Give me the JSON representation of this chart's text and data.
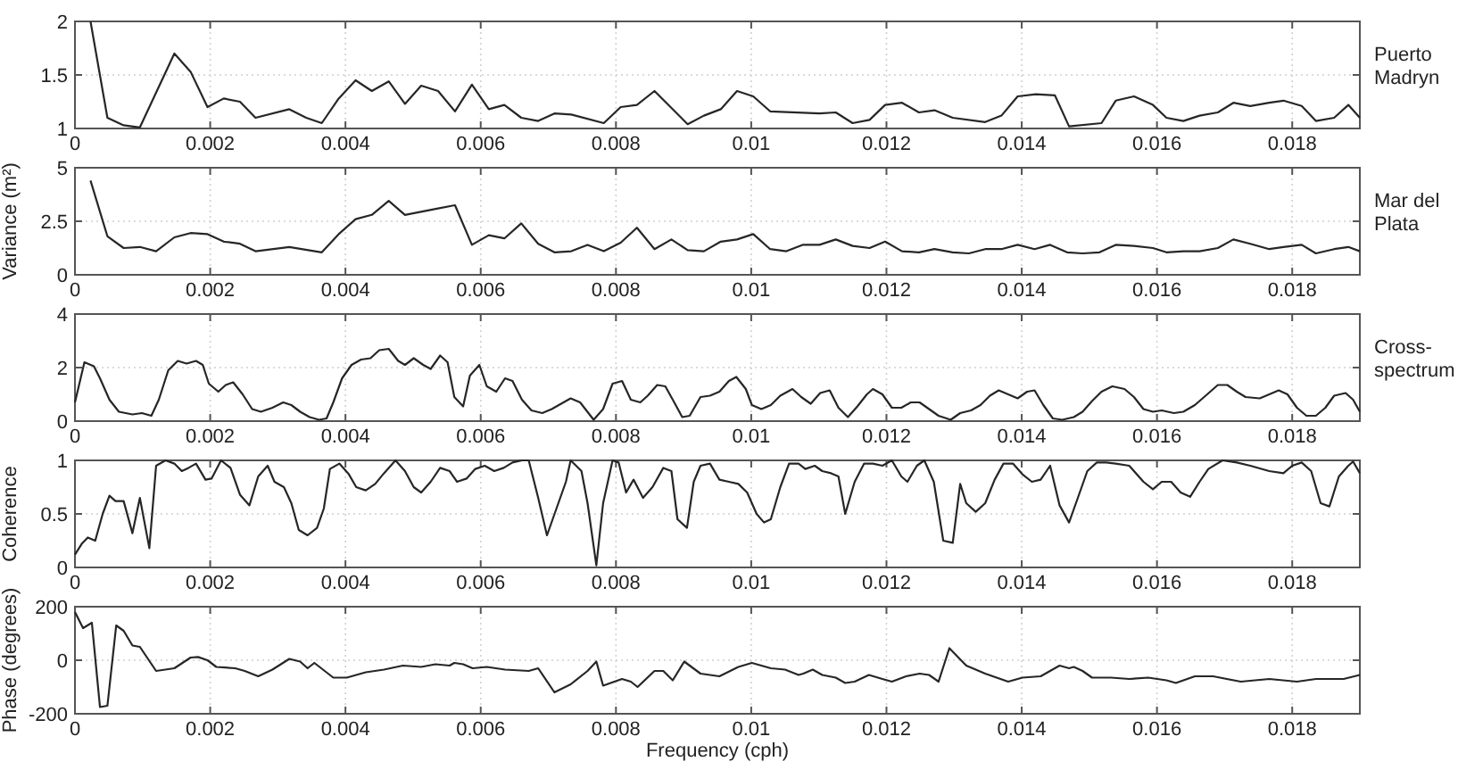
{
  "chart_data": [
    {
      "type": "line",
      "xlim": [
        0,
        0.019
      ],
      "xticks": [
        0,
        0.002,
        0.004,
        0.006,
        0.008,
        0.01,
        0.012,
        0.014,
        0.016,
        0.018
      ],
      "ylim": [
        1,
        2
      ],
      "yticks": [
        1,
        1.5,
        2
      ],
      "grid": true,
      "series": [
        {
          "name": "Puerto Madryn",
          "color": "#262626",
          "x": [
            0.00023,
            0.00048,
            0.00072,
            0.00096,
            0.00147,
            0.00171,
            0.00196,
            0.0022,
            0.00244,
            0.00267,
            0.00317,
            0.00342,
            0.00365,
            0.0039,
            0.00415,
            0.00439,
            0.00464,
            0.00488,
            0.00512,
            0.00537,
            0.00562,
            0.00587,
            0.00612,
            0.00635,
            0.0066,
            0.00685,
            0.00709,
            0.00734,
            0.00782,
            0.00807,
            0.00831,
            0.00857,
            0.00906,
            0.0093,
            0.00955,
            0.00979,
            0.01003,
            0.01028,
            0.01101,
            0.01125,
            0.0115,
            0.01175,
            0.01198,
            0.01223,
            0.01248,
            0.01271,
            0.01298,
            0.01346,
            0.0137,
            0.01394,
            0.01421,
            0.01449,
            0.0147,
            0.01518,
            0.01539,
            0.01566,
            0.01594,
            0.01614,
            0.01639,
            0.01663,
            0.0169,
            0.01713,
            0.01738,
            0.01766,
            0.01787,
            0.01814,
            0.01835,
            0.01862,
            0.01883,
            0.019
          ],
          "values": [
            2.0,
            1.1,
            1.03,
            1.01,
            1.7,
            1.53,
            1.2,
            1.28,
            1.25,
            1.1,
            1.18,
            1.1,
            1.05,
            1.28,
            1.45,
            1.35,
            1.44,
            1.23,
            1.4,
            1.35,
            1.16,
            1.41,
            1.18,
            1.22,
            1.1,
            1.07,
            1.14,
            1.13,
            1.05,
            1.2,
            1.22,
            1.35,
            1.04,
            1.12,
            1.18,
            1.35,
            1.3,
            1.16,
            1.14,
            1.15,
            1.05,
            1.08,
            1.22,
            1.24,
            1.15,
            1.17,
            1.1,
            1.06,
            1.12,
            1.3,
            1.32,
            1.31,
            1.02,
            1.05,
            1.26,
            1.3,
            1.22,
            1.1,
            1.07,
            1.12,
            1.15,
            1.24,
            1.21,
            1.24,
            1.26,
            1.21,
            1.07,
            1.1,
            1.22,
            1.1
          ]
        }
      ]
    },
    {
      "type": "line",
      "xlim": [
        0,
        0.019
      ],
      "xticks": [
        0,
        0.002,
        0.004,
        0.006,
        0.008,
        0.01,
        0.012,
        0.014,
        0.016,
        0.018
      ],
      "ylim": [
        0,
        5
      ],
      "yticks": [
        0,
        2.5,
        5
      ],
      "ylabel": "Variance (m²)",
      "grid": true,
      "series": [
        {
          "name": "Mar del Plata",
          "color": "#262626",
          "x": [
            0.00023,
            0.00048,
            0.00072,
            0.00096,
            0.0012,
            0.00147,
            0.00171,
            0.00196,
            0.0022,
            0.00244,
            0.00267,
            0.00317,
            0.00365,
            0.0039,
            0.00415,
            0.00439,
            0.00464,
            0.00488,
            0.00537,
            0.00562,
            0.00587,
            0.00612,
            0.00635,
            0.0066,
            0.00685,
            0.00709,
            0.00734,
            0.00758,
            0.00782,
            0.00807,
            0.00831,
            0.00857,
            0.00882,
            0.00906,
            0.0093,
            0.00955,
            0.00979,
            0.01003,
            0.01028,
            0.01052,
            0.01076,
            0.01101,
            0.01125,
            0.0115,
            0.01175,
            0.01198,
            0.01223,
            0.01248,
            0.01271,
            0.01298,
            0.01322,
            0.01346,
            0.0137,
            0.01394,
            0.01419,
            0.01442,
            0.01467,
            0.0149,
            0.01515,
            0.01539,
            0.01566,
            0.01594,
            0.01614,
            0.01639,
            0.01663,
            0.0169,
            0.01713,
            0.01738,
            0.01766,
            0.01787,
            0.01814,
            0.01835,
            0.01862,
            0.01883,
            0.019
          ],
          "values": [
            4.4,
            1.8,
            1.25,
            1.3,
            1.1,
            1.75,
            1.95,
            1.9,
            1.55,
            1.45,
            1.1,
            1.3,
            1.05,
            1.9,
            2.6,
            2.8,
            3.45,
            2.8,
            3.1,
            3.25,
            1.4,
            1.85,
            1.7,
            2.4,
            1.45,
            1.05,
            1.1,
            1.4,
            1.1,
            1.5,
            2.2,
            1.2,
            1.65,
            1.15,
            1.1,
            1.55,
            1.65,
            1.9,
            1.2,
            1.1,
            1.4,
            1.4,
            1.65,
            1.35,
            1.25,
            1.55,
            1.1,
            1.05,
            1.2,
            1.05,
            1.0,
            1.2,
            1.2,
            1.4,
            1.2,
            1.4,
            1.05,
            1.0,
            1.05,
            1.4,
            1.35,
            1.25,
            1.05,
            1.1,
            1.1,
            1.25,
            1.65,
            1.45,
            1.2,
            1.3,
            1.4,
            1.0,
            1.2,
            1.3,
            1.1
          ]
        }
      ]
    },
    {
      "type": "line",
      "xlim": [
        0,
        0.019
      ],
      "xticks": [
        0,
        0.002,
        0.004,
        0.006,
        0.008,
        0.01,
        0.012,
        0.014,
        0.016,
        0.018
      ],
      "ylim": [
        0,
        4
      ],
      "yticks": [
        0,
        2,
        4
      ],
      "grid": true,
      "series": [
        {
          "name": "Cross-spectrum",
          "color": "#262626",
          "x": [
            0,
            0.00014,
            0.00028,
            0.00037,
            0.00051,
            0.00065,
            0.00085,
            0.00099,
            0.00113,
            0.00124,
            0.00138,
            0.00152,
            0.00165,
            0.00179,
            0.00189,
            0.00198,
            0.00212,
            0.00223,
            0.00234,
            0.00248,
            0.00262,
            0.00275,
            0.00292,
            0.00308,
            0.0032,
            0.00333,
            0.00347,
            0.00361,
            0.00372,
            0.00382,
            0.00395,
            0.00409,
            0.00423,
            0.00437,
            0.0045,
            0.00464,
            0.00478,
            0.00488,
            0.00501,
            0.00515,
            0.00526,
            0.0054,
            0.00551,
            0.00561,
            0.00574,
            0.00584,
            0.00598,
            0.00609,
            0.00623,
            0.00636,
            0.00647,
            0.00661,
            0.00675,
            0.00691,
            0.00705,
            0.00719,
            0.00733,
            0.00747,
            0.00767,
            0.00781,
            0.00795,
            0.00809,
            0.00822,
            0.00836,
            0.00847,
            0.00861,
            0.00873,
            0.00884,
            0.00898,
            0.00909,
            0.00925,
            0.00939,
            0.00953,
            0.00967,
            0.00978,
            0.00992,
            0.01001,
            0.01015,
            0.01029,
            0.01043,
            0.01061,
            0.01074,
            0.01088,
            0.01102,
            0.01116,
            0.01129,
            0.01143,
            0.01157,
            0.01171,
            0.0118,
            0.01194,
            0.01208,
            0.01222,
            0.01236,
            0.01249,
            0.01263,
            0.01277,
            0.01295,
            0.01309,
            0.01325,
            0.01339,
            0.01353,
            0.01366,
            0.0138,
            0.01394,
            0.01408,
            0.01419,
            0.01432,
            0.01446,
            0.0146,
            0.01477,
            0.0149,
            0.01504,
            0.01518,
            0.01534,
            0.01552,
            0.01566,
            0.0158,
            0.01594,
            0.01607,
            0.01625,
            0.01639,
            0.01656,
            0.01672,
            0.0169,
            0.01704,
            0.01718,
            0.01731,
            0.01752,
            0.01766,
            0.0178,
            0.01793,
            0.01807,
            0.01821,
            0.01835,
            0.01849,
            0.01862,
            0.01879,
            0.0189,
            0.019
          ],
          "values": [
            0.7,
            2.2,
            2.05,
            1.6,
            0.8,
            0.35,
            0.25,
            0.3,
            0.2,
            0.8,
            1.9,
            2.25,
            2.15,
            2.25,
            2.1,
            1.4,
            1.1,
            1.35,
            1.45,
            1.0,
            0.45,
            0.35,
            0.5,
            0.7,
            0.6,
            0.35,
            0.15,
            0.05,
            0.1,
            0.7,
            1.6,
            2.1,
            2.3,
            2.35,
            2.65,
            2.7,
            2.25,
            2.1,
            2.35,
            2.1,
            1.95,
            2.45,
            2.2,
            0.9,
            0.55,
            1.7,
            2.1,
            1.3,
            1.1,
            1.6,
            1.5,
            0.8,
            0.4,
            0.3,
            0.45,
            0.65,
            0.85,
            0.7,
            0.05,
            0.45,
            1.4,
            1.5,
            0.8,
            0.7,
            0.95,
            1.35,
            1.3,
            0.8,
            0.15,
            0.2,
            0.9,
            0.95,
            1.1,
            1.5,
            1.65,
            1.2,
            0.6,
            0.45,
            0.6,
            0.95,
            1.2,
            0.9,
            0.65,
            1.05,
            1.15,
            0.5,
            0.15,
            0.55,
            1.0,
            1.2,
            1.0,
            0.5,
            0.5,
            0.7,
            0.7,
            0.45,
            0.2,
            0.05,
            0.3,
            0.4,
            0.6,
            0.95,
            1.15,
            1.0,
            0.85,
            1.1,
            1.15,
            0.6,
            0.1,
            0.05,
            0.15,
            0.35,
            0.75,
            1.1,
            1.3,
            1.2,
            0.9,
            0.45,
            0.35,
            0.4,
            0.3,
            0.35,
            0.6,
            0.95,
            1.35,
            1.35,
            1.1,
            0.9,
            0.85,
            1.0,
            1.15,
            1.0,
            0.5,
            0.2,
            0.2,
            0.5,
            0.95,
            1.05,
            0.8,
            0.35
          ]
        }
      ]
    },
    {
      "type": "line",
      "xlim": [
        0,
        0.019
      ],
      "xticks": [
        0,
        0.002,
        0.004,
        0.006,
        0.008,
        0.01,
        0.012,
        0.014,
        0.016,
        0.018
      ],
      "ylim": [
        0,
        1
      ],
      "yticks": [
        0,
        0.5,
        1
      ],
      "ylabel": "Coherence",
      "grid": true,
      "series": [
        {
          "color": "#262626",
          "x": [
            0,
            0.0001,
            0.00019,
            0.0003,
            0.00041,
            0.00051,
            0.0006,
            0.00072,
            0.00085,
            0.00096,
            0.0011,
            0.0012,
            0.00134,
            0.00147,
            0.00158,
            0.00168,
            0.00179,
            0.00193,
            0.00202,
            0.00216,
            0.0023,
            0.00244,
            0.00258,
            0.00271,
            0.00285,
            0.00295,
            0.00309,
            0.0032,
            0.00331,
            0.00344,
            0.00358,
            0.00368,
            0.00377,
            0.00391,
            0.00405,
            0.00416,
            0.0043,
            0.00444,
            0.00457,
            0.00474,
            0.00488,
            0.00501,
            0.00512,
            0.00526,
            0.0054,
            0.00554,
            0.00565,
            0.00579,
            0.00592,
            0.00606,
            0.0062,
            0.00634,
            0.00647,
            0.00661,
            0.00671,
            0.00685,
            0.00698,
            0.00712,
            0.00726,
            0.00733,
            0.00749,
            0.00758,
            0.00771,
            0.00781,
            0.00795,
            0.00804,
            0.00815,
            0.00826,
            0.0084,
            0.00854,
            0.0087,
            0.00882,
            0.00891,
            0.00905,
            0.00915,
            0.00925,
            0.00939,
            0.00953,
            0.00967,
            0.00981,
            0.00994,
            0.01008,
            0.01019,
            0.01029,
            0.01043,
            0.01056,
            0.0107,
            0.0108,
            0.01094,
            0.01105,
            0.01118,
            0.01129,
            0.01139,
            0.01153,
            0.01167,
            0.0118,
            0.01194,
            0.01208,
            0.01222,
            0.01231,
            0.01245,
            0.01256,
            0.0127,
            0.01284,
            0.01298,
            0.01309,
            0.01318,
            0.01332,
            0.01346,
            0.0136,
            0.01373,
            0.01387,
            0.01401,
            0.01415,
            0.01428,
            0.01442,
            0.01456,
            0.0147,
            0.01483,
            0.01497,
            0.01511,
            0.01525,
            0.01539,
            0.01559,
            0.0158,
            0.01594,
            0.01607,
            0.01621,
            0.01635,
            0.01649,
            0.01663,
            0.01676,
            0.01697,
            0.01718,
            0.01738,
            0.01766,
            0.01787,
            0.018,
            0.01814,
            0.01828,
            0.01842,
            0.01855,
            0.01869,
            0.01883,
            0.0189,
            0.019
          ],
          "values": [
            0.12,
            0.22,
            0.28,
            0.25,
            0.5,
            0.67,
            0.62,
            0.62,
            0.32,
            0.65,
            0.18,
            0.95,
            1.0,
            0.97,
            0.9,
            0.93,
            0.97,
            0.82,
            0.83,
            1.0,
            0.93,
            0.68,
            0.58,
            0.85,
            0.95,
            0.8,
            0.75,
            0.6,
            0.35,
            0.3,
            0.37,
            0.55,
            0.92,
            0.97,
            0.87,
            0.75,
            0.72,
            0.78,
            0.88,
            1.0,
            0.9,
            0.75,
            0.7,
            0.8,
            0.93,
            0.9,
            0.8,
            0.83,
            0.92,
            0.95,
            0.9,
            0.93,
            0.98,
            1.0,
            1.0,
            0.65,
            0.3,
            0.55,
            0.8,
            1.0,
            0.9,
            0.6,
            0.02,
            0.6,
            1.0,
            0.98,
            0.7,
            0.82,
            0.65,
            0.75,
            0.93,
            0.9,
            0.45,
            0.37,
            0.8,
            0.95,
            0.97,
            0.82,
            0.8,
            0.78,
            0.7,
            0.5,
            0.42,
            0.45,
            0.75,
            0.97,
            0.97,
            0.92,
            0.95,
            0.9,
            0.88,
            0.85,
            0.5,
            0.8,
            0.97,
            0.97,
            0.95,
            1.0,
            0.85,
            0.8,
            0.95,
            1.0,
            0.8,
            0.25,
            0.23,
            0.78,
            0.6,
            0.52,
            0.6,
            0.82,
            0.97,
            0.97,
            0.87,
            0.8,
            0.82,
            0.95,
            0.58,
            0.42,
            0.65,
            0.9,
            0.98,
            0.98,
            0.97,
            0.95,
            0.8,
            0.73,
            0.8,
            0.8,
            0.7,
            0.66,
            0.8,
            0.92,
            1.0,
            0.98,
            0.95,
            0.9,
            0.88,
            0.95,
            0.98,
            0.9,
            0.6,
            0.57,
            0.85,
            0.95,
            0.99,
            0.88
          ]
        }
      ]
    },
    {
      "type": "line",
      "xlim": [
        0,
        0.019
      ],
      "xticks": [
        0,
        0.002,
        0.004,
        0.006,
        0.008,
        0.01,
        0.012,
        0.014,
        0.016,
        0.018
      ],
      "ylim": [
        -200,
        200
      ],
      "yticks": [
        -200,
        0,
        200
      ],
      "ylabel": "Phase (degrees)",
      "xlabel": "Frequency (cph)",
      "grid": true,
      "series": [
        {
          "color": "#262626",
          "x": [
            0,
            0.00012,
            0.00025,
            0.00037,
            0.00048,
            0.00061,
            0.00072,
            0.00085,
            0.00096,
            0.0012,
            0.00147,
            0.00171,
            0.00182,
            0.00196,
            0.00209,
            0.00237,
            0.00251,
            0.00271,
            0.00292,
            0.00317,
            0.00333,
            0.00344,
            0.00354,
            0.00382,
            0.00402,
            0.0043,
            0.00457,
            0.00485,
            0.00512,
            0.00533,
            0.00554,
            0.00561,
            0.00574,
            0.00588,
            0.00609,
            0.00636,
            0.00671,
            0.00685,
            0.00709,
            0.00733,
            0.00758,
            0.00771,
            0.00781,
            0.00809,
            0.00822,
            0.00832,
            0.00857,
            0.0087,
            0.00884,
            0.00901,
            0.00925,
            0.00953,
            0.00981,
            0.01001,
            0.01008,
            0.01029,
            0.0105,
            0.0107,
            0.01077,
            0.01091,
            0.01105,
            0.01125,
            0.01139,
            0.01153,
            0.01174,
            0.01194,
            0.01208,
            0.01229,
            0.01249,
            0.01263,
            0.01277,
            0.01293,
            0.01318,
            0.01346,
            0.0138,
            0.01401,
            0.01428,
            0.01442,
            0.01456,
            0.0147,
            0.01477,
            0.0149,
            0.01504,
            0.01532,
            0.01559,
            0.01587,
            0.01614,
            0.01628,
            0.01656,
            0.01683,
            0.01724,
            0.01766,
            0.01807,
            0.01835,
            0.01876,
            0.019
          ],
          "values": [
            180,
            120,
            140,
            -175,
            -170,
            130,
            110,
            55,
            50,
            -40,
            -30,
            10,
            12,
            0,
            -25,
            -30,
            -40,
            -60,
            -35,
            5,
            -5,
            -30,
            -10,
            -65,
            -65,
            -45,
            -35,
            -20,
            -25,
            -15,
            -20,
            -10,
            -15,
            -30,
            -25,
            -35,
            -40,
            -30,
            -120,
            -90,
            -40,
            -5,
            -95,
            -70,
            -80,
            -100,
            -40,
            -40,
            -75,
            -5,
            -50,
            -60,
            -25,
            -10,
            -15,
            -30,
            -35,
            -55,
            -50,
            -35,
            -55,
            -65,
            -85,
            -80,
            -55,
            -70,
            -80,
            -60,
            -50,
            -55,
            -80,
            45,
            -20,
            -50,
            -80,
            -65,
            -60,
            -40,
            -20,
            -30,
            -25,
            -40,
            -65,
            -65,
            -70,
            -65,
            -75,
            -85,
            -60,
            -60,
            -80,
            -70,
            -80,
            -70,
            -70,
            -55
          ]
        }
      ]
    }
  ]
}
